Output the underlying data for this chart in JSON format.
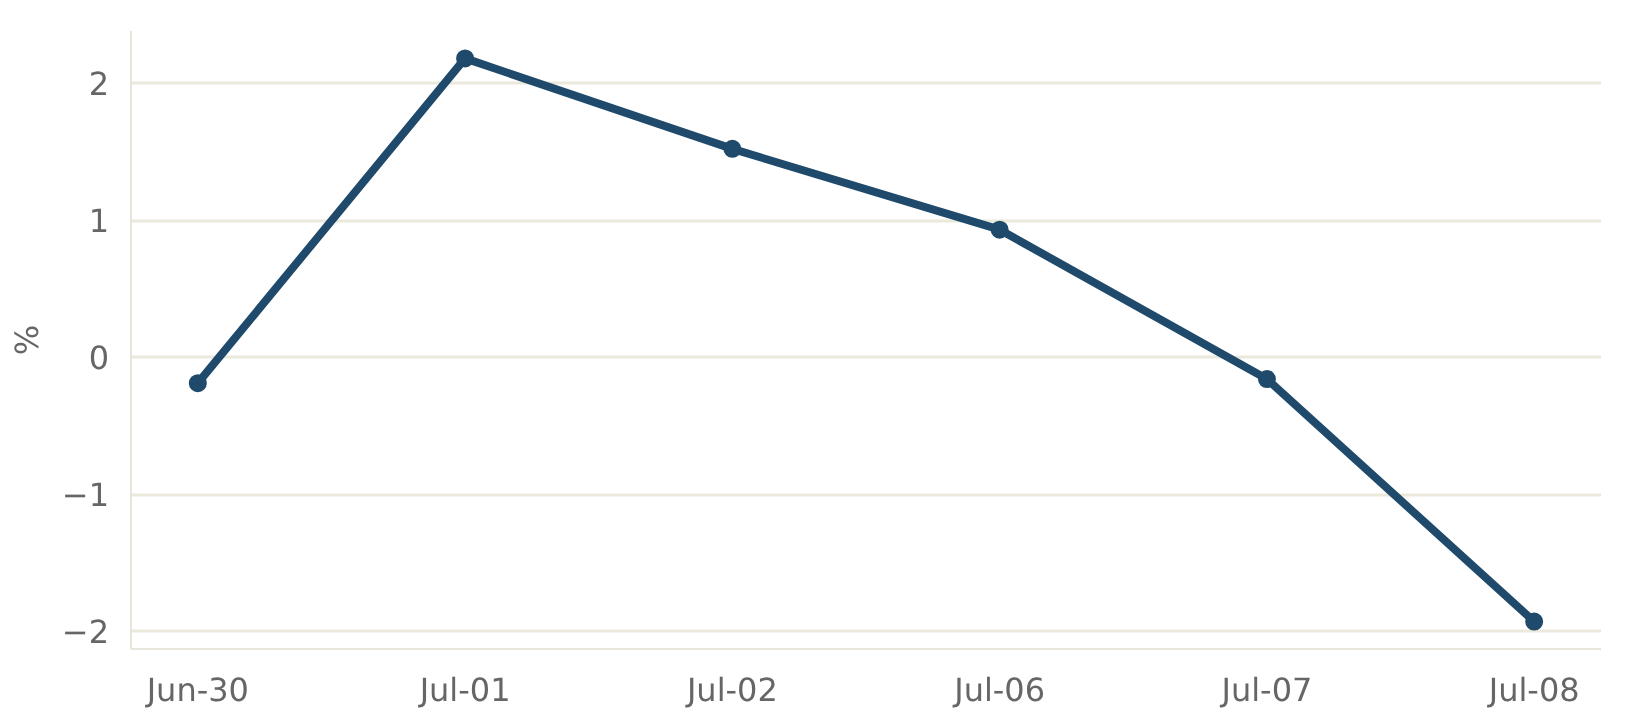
{
  "chart_data": {
    "type": "line",
    "ylabel": "%",
    "categories": [
      "Jun-30",
      "Jul-01",
      "Jul-02",
      "Jul-06",
      "Jul-07",
      "Jul-08"
    ],
    "series": [
      {
        "color": "#1f4a6b",
        "values": [
          -0.19,
          2.18,
          1.52,
          0.93,
          -0.16,
          -1.93
        ]
      }
    ],
    "ylim": [
      -2.13,
      2.38
    ],
    "yticks": [
      {
        "value": -2,
        "label": "−2"
      },
      {
        "value": -1,
        "label": "−1"
      },
      0,
      1,
      2
    ],
    "grid": "y",
    "marker": "circle",
    "line_style": "solid"
  }
}
